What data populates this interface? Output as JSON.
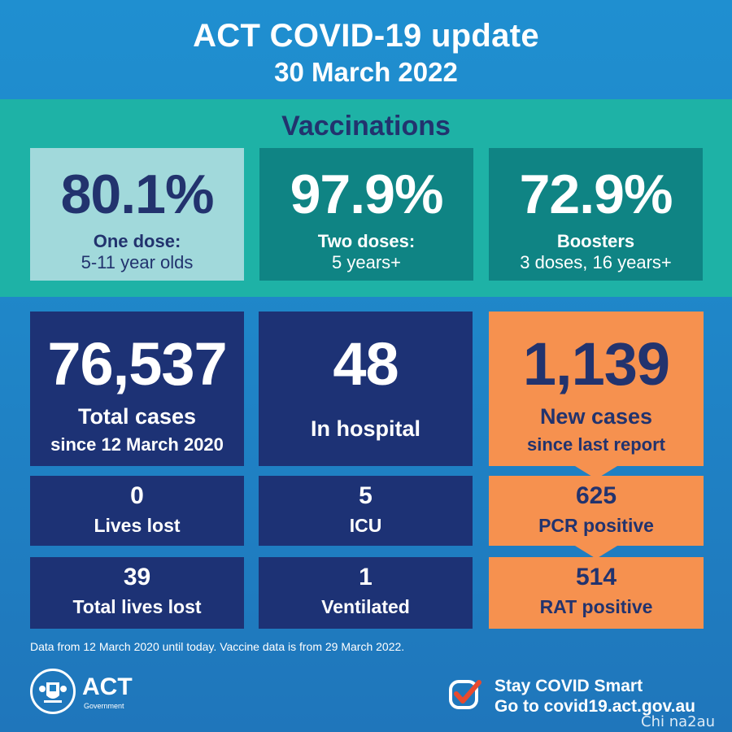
{
  "header": {
    "title": "ACT COVID-19 update",
    "date": "30 March 2022"
  },
  "vaccinations": {
    "heading": "Vaccinations",
    "boxes": [
      {
        "value": "80.1%",
        "line1": "One dose:",
        "line2": "5-11 year olds"
      },
      {
        "value": "97.9%",
        "line1": "Two doses:",
        "line2": "5 years+"
      },
      {
        "value": "72.9%",
        "line1": "Boosters",
        "line2": "3 doses, 16 years+"
      }
    ]
  },
  "stats": {
    "total_cases": {
      "value": "76,537",
      "label": "Total cases",
      "sublabel": "since 12 March 2020"
    },
    "hospital": {
      "value": "48",
      "label": "In hospital"
    },
    "new_cases": {
      "value": "1,139",
      "label": "New cases",
      "sublabel": "since last report"
    },
    "lives_lost": {
      "value": "0",
      "label": "Lives lost"
    },
    "icu": {
      "value": "5",
      "label": "ICU"
    },
    "pcr": {
      "value": "625",
      "label": "PCR positive"
    },
    "total_lives_lost": {
      "value": "39",
      "label": "Total lives lost"
    },
    "ventilated": {
      "value": "1",
      "label": "Ventilated"
    },
    "rat": {
      "value": "514",
      "label": "RAT positive"
    }
  },
  "footnote": "Data from 12 March 2020 until today.  Vaccine data is from 29 March 2022.",
  "logo": {
    "name": "ACT",
    "sub": "Government",
    "icon": "act-crest-icon"
  },
  "cta": {
    "line1": "Stay COVID Smart",
    "line2": "Go to covid19.act.gov.au",
    "icon": "checkmark-icon"
  },
  "watermark": "Chi na2au",
  "colors": {
    "navy": "#1d3275",
    "teal_band": "#1eb2a6",
    "teal_box": "#0f8484",
    "light_teal": "#a1d9db",
    "orange": "#f6914f",
    "check_red": "#e84a2f"
  }
}
